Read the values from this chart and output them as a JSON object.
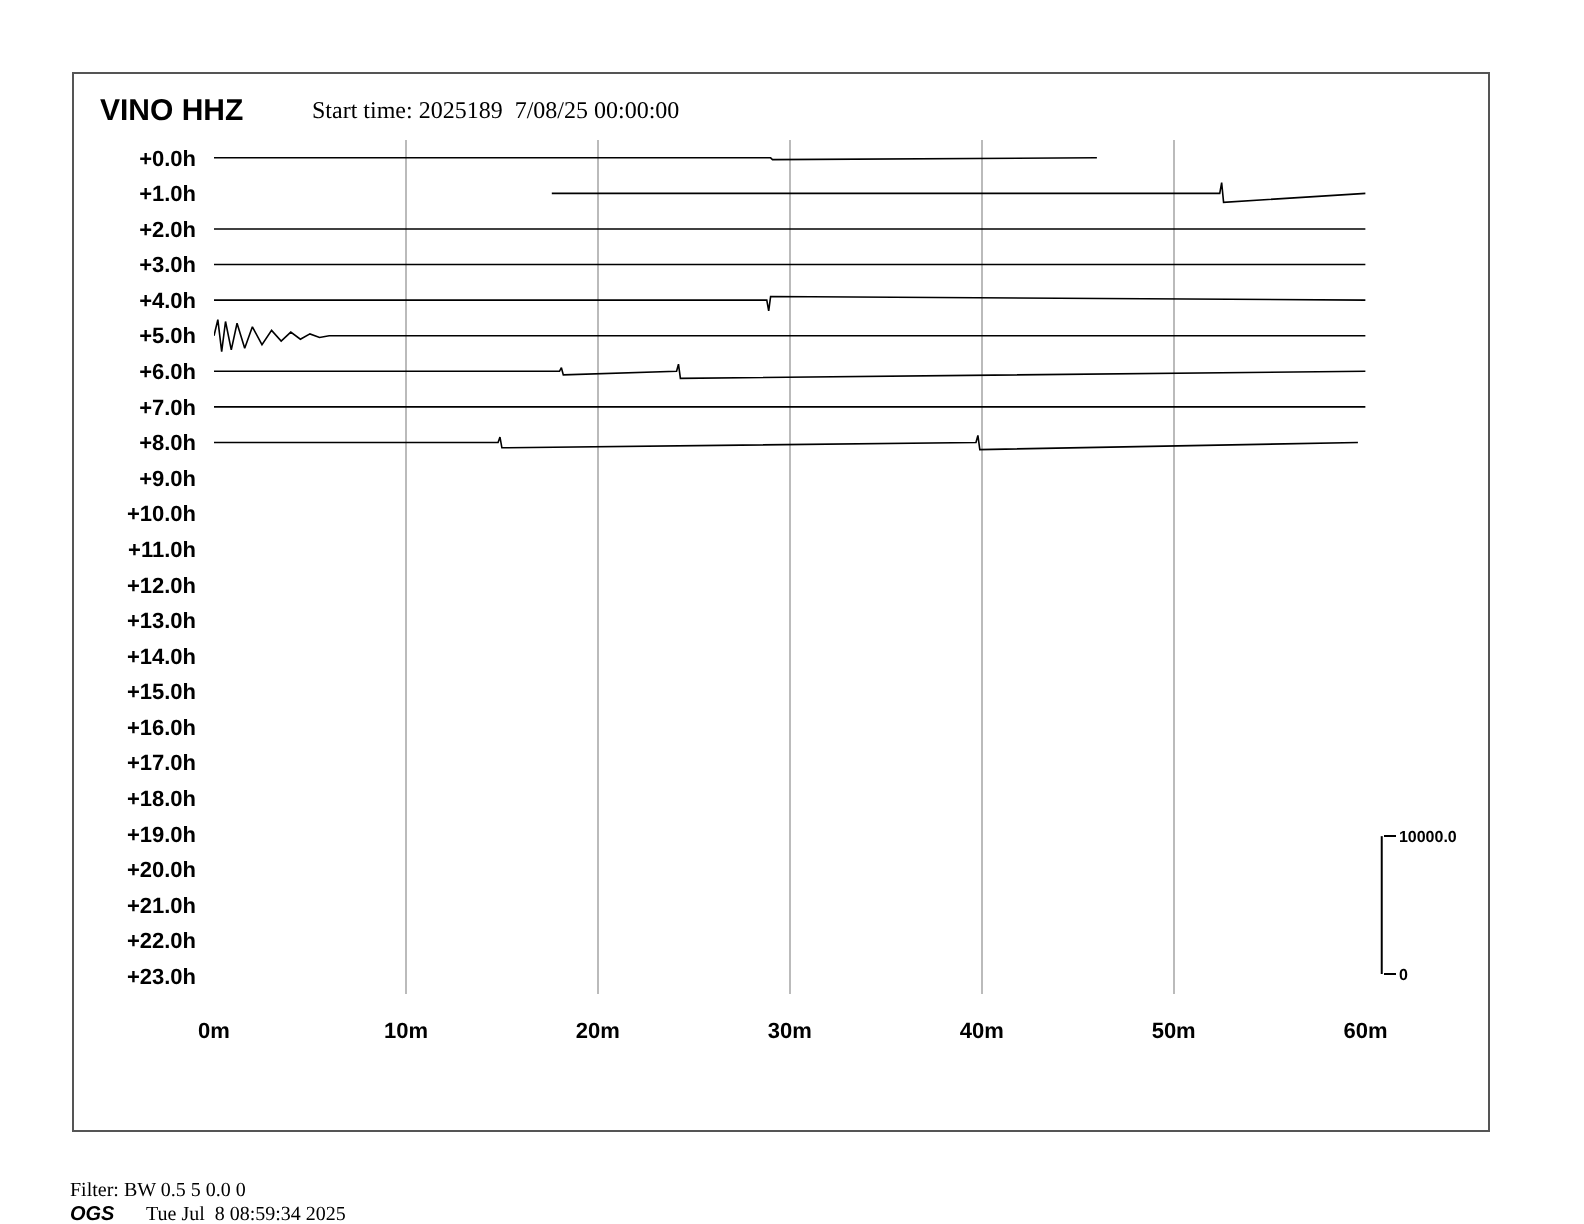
{
  "chart_data": {
    "type": "line",
    "title": "VINO HHZ",
    "subtitle": "Start time: 2025189  7/08/25 00:00:00",
    "xlim": [
      0,
      60
    ],
    "xticks": [
      {
        "value": 0,
        "label": "0m"
      },
      {
        "value": 10,
        "label": "10m"
      },
      {
        "value": 20,
        "label": "20m"
      },
      {
        "value": 30,
        "label": "30m"
      },
      {
        "value": 40,
        "label": "40m"
      },
      {
        "value": 50,
        "label": "50m"
      },
      {
        "value": 60,
        "label": "60m"
      }
    ],
    "ylim": [
      23.5,
      -0.5
    ],
    "yticks": [
      {
        "value": 0,
        "label": "+0.0h"
      },
      {
        "value": 1,
        "label": "+1.0h"
      },
      {
        "value": 2,
        "label": "+2.0h"
      },
      {
        "value": 3,
        "label": "+3.0h"
      },
      {
        "value": 4,
        "label": "+4.0h"
      },
      {
        "value": 5,
        "label": "+5.0h"
      },
      {
        "value": 6,
        "label": "+6.0h"
      },
      {
        "value": 7,
        "label": "+7.0h"
      },
      {
        "value": 8,
        "label": "+8.0h"
      },
      {
        "value": 9,
        "label": "+9.0h"
      },
      {
        "value": 10,
        "label": "+10.0h"
      },
      {
        "value": 11,
        "label": "+11.0h"
      },
      {
        "value": 12,
        "label": "+12.0h"
      },
      {
        "value": 13,
        "label": "+13.0h"
      },
      {
        "value": 14,
        "label": "+14.0h"
      },
      {
        "value": 15,
        "label": "+15.0h"
      },
      {
        "value": 16,
        "label": "+16.0h"
      },
      {
        "value": 17,
        "label": "+17.0h"
      },
      {
        "value": 18,
        "label": "+18.0h"
      },
      {
        "value": 19,
        "label": "+19.0h"
      },
      {
        "value": 20,
        "label": "+20.0h"
      },
      {
        "value": 21,
        "label": "+21.0h"
      },
      {
        "value": 22,
        "label": "+22.0h"
      },
      {
        "value": 23,
        "label": "+23.0h"
      }
    ],
    "y2lim": [
      -1450,
      60500
    ],
    "y2ticks": [
      0,
      {
        "value": 10000,
        "label": "10000.0"
      }
    ],
    "grid": "x",
    "line_style": "solid",
    "series": [
      {
        "color": "#000000",
        "x": [
          0,
          29,
          29.1,
          46
        ],
        "values": [
          0,
          0,
          0.05,
          0
        ]
      },
      {
        "color": "#000000",
        "x": [
          17.6,
          52.4,
          52.5,
          52.6,
          60
        ],
        "values": [
          1,
          1,
          0.7,
          1.25,
          1
        ]
      },
      {
        "color": "#000000",
        "x": [
          0,
          60
        ],
        "values": [
          2,
          2
        ]
      },
      {
        "color": "#000000",
        "x": [
          0,
          60
        ],
        "values": [
          3,
          3
        ]
      },
      {
        "color": "#000000",
        "x": [
          0,
          28.8,
          28.9,
          29,
          60
        ],
        "values": [
          4,
          4,
          4.3,
          3.9,
          4
        ]
      },
      {
        "color": "#000000",
        "x": [
          0,
          0.2,
          0.4,
          0.6,
          0.9,
          1.2,
          1.6,
          2,
          2.5,
          3,
          3.5,
          4,
          4.5,
          5,
          5.5,
          6,
          60
        ],
        "values": [
          5,
          4.55,
          5.45,
          4.6,
          5.4,
          4.65,
          5.35,
          4.75,
          5.25,
          4.85,
          5.15,
          4.9,
          5.1,
          4.95,
          5.05,
          5,
          5
        ]
      },
      {
        "color": "#000000",
        "x": [
          0,
          18,
          18.1,
          18.2,
          24.1,
          24.2,
          24.3,
          60
        ],
        "values": [
          6,
          6,
          5.9,
          6.1,
          6,
          5.8,
          6.2,
          6
        ]
      },
      {
        "color": "#000000",
        "x": [
          0,
          60
        ],
        "values": [
          7,
          7
        ]
      },
      {
        "color": "#000000",
        "x": [
          0,
          14.8,
          14.9,
          15,
          39.7,
          39.8,
          39.9,
          59.6
        ],
        "values": [
          8,
          8,
          7.85,
          8.15,
          8,
          7.8,
          8.2,
          8
        ]
      }
    ],
    "annotations": [
      "Filter: BW 0.5 5 0.0 0",
      "OGS",
      "Tue Jul  8 08:59:34 2025"
    ]
  }
}
